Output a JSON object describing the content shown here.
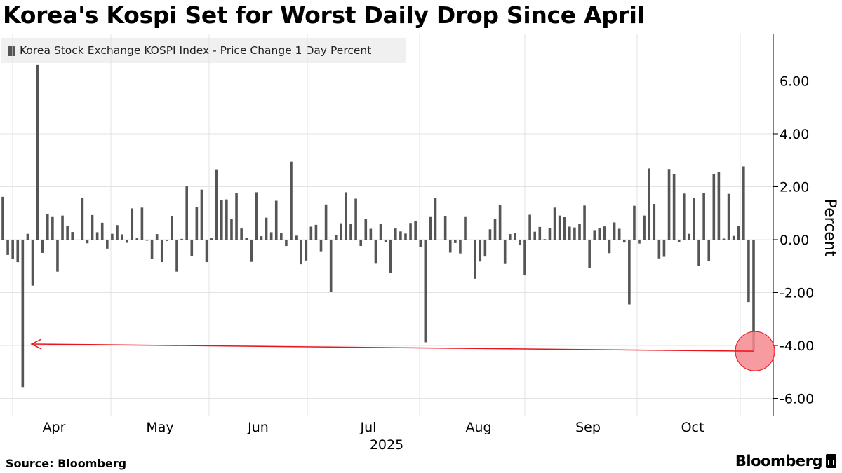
{
  "chart_data": {
    "type": "bar",
    "title": "Korea's Kospi Set for Worst Daily Drop Since April",
    "legend": "Korea Stock Exchange KOSPI Index - Price Change 1 Day Percent",
    "ylabel": "Percent",
    "ylim": [
      -6.8,
      7.6
    ],
    "yticks": [
      6,
      4,
      2,
      0,
      -2,
      -4,
      -6
    ],
    "ytick_labels": [
      "6.00",
      "4.00",
      "2.00",
      "0.00",
      "-2.00",
      "-4.00",
      "-6.00"
    ],
    "x_month_labels": [
      "Apr",
      "May",
      "Jun",
      "Jul",
      "Aug",
      "Sep",
      "Oct"
    ],
    "x_year_label": "2025",
    "annotation": "Latest drop of about -4.2% highlighted and compared with the April low",
    "series": [
      {
        "name": "Korea Stock Exchange KOSPI Index - Price Change 1 Day Percent",
        "values": [
          1.62,
          -0.58,
          -0.72,
          -0.85,
          -5.57,
          0.22,
          -1.74,
          6.6,
          -0.5,
          0.96,
          0.88,
          -1.21,
          0.91,
          0.53,
          0.29,
          -0.02,
          1.59,
          -0.14,
          0.93,
          0.28,
          0.64,
          -0.34,
          0.22,
          0.55,
          0.2,
          -0.12,
          1.18,
          0.05,
          1.21,
          -0.04,
          -0.72,
          0.21,
          -0.85,
          -0.05,
          0.9,
          -1.21,
          0.03,
          2.01,
          -0.61,
          1.24,
          1.89,
          -0.85,
          0.05,
          2.66,
          1.49,
          1.52,
          0.78,
          1.77,
          0.42,
          0.08,
          -0.84,
          1.79,
          0.13,
          0.83,
          0.28,
          1.47,
          0.26,
          -0.24,
          2.95,
          0.15,
          -0.93,
          -0.79,
          0.49,
          0.56,
          -0.44,
          1.33,
          -1.96,
          0.18,
          0.62,
          1.79,
          0.61,
          1.55,
          -0.24,
          0.78,
          0.41,
          -0.91,
          0.59,
          -0.1,
          -1.26,
          0.42,
          0.31,
          0.23,
          0.63,
          0.71,
          -0.27,
          -3.88,
          0.88,
          1.57,
          -0.02,
          0.9,
          -0.49,
          -0.13,
          -0.52,
          0.88,
          -0.02,
          -1.48,
          -0.83,
          -0.64,
          0.39,
          0.79,
          1.31,
          -0.92,
          0.21,
          0.26,
          -0.2,
          -1.33,
          0.94,
          0.3,
          0.48,
          0.02,
          0.43,
          1.21,
          0.91,
          0.87,
          0.49,
          0.46,
          0.61,
          1.29,
          -1.08,
          0.36,
          0.43,
          0.5,
          -0.51,
          0.65,
          0.41,
          -0.11,
          -2.45,
          1.28,
          -0.15,
          0.91,
          2.69,
          1.35,
          -0.71,
          -0.65,
          2.67,
          2.47,
          -0.08,
          1.74,
          0.22,
          1.59,
          -0.98,
          1.76,
          -0.82,
          2.49,
          2.55,
          0.04,
          1.73,
          0.14,
          0.51,
          2.77,
          -2.36,
          -4.19
        ]
      }
    ]
  },
  "source": "Source: Bloomberg",
  "brand": "Bloomberg",
  "colors": {
    "bar": "#555555",
    "highlight": "#e8141b",
    "marker_fill": "#f58a8e"
  }
}
